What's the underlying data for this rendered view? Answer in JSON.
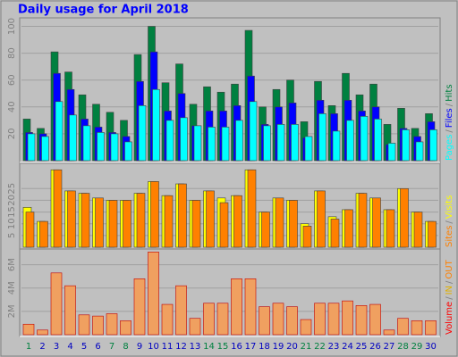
{
  "chart_data": {
    "type": "bar",
    "title": "Daily usage for April 2018",
    "separator": "/",
    "categories": [
      "1",
      "2",
      "3",
      "4",
      "5",
      "6",
      "7",
      "8",
      "9",
      "10",
      "11",
      "12",
      "13",
      "14",
      "15",
      "16",
      "17",
      "18",
      "19",
      "20",
      "21",
      "22",
      "23",
      "24",
      "25",
      "26",
      "27",
      "28",
      "29",
      "30"
    ],
    "label_colors": [
      "#008040",
      "#0000c0",
      "#0000c0",
      "#0000c0",
      "#0000c0",
      "#0000c0",
      "#008040",
      "#008040",
      "#0000c0",
      "#0000c0",
      "#0000c0",
      "#0000c0",
      "#0000c0",
      "#008040",
      "#008040",
      "#0000c0",
      "#0000c0",
      "#0000c0",
      "#0000c0",
      "#0000c0",
      "#008040",
      "#008040",
      "#0000c0",
      "#0000c0",
      "#0000c0",
      "#0000c0",
      "#0000c0",
      "#008040",
      "#008040",
      "#0000c0"
    ],
    "panels": [
      {
        "ylim": [
          0,
          105
        ],
        "yticks": [
          20,
          40,
          60,
          80,
          100
        ],
        "series": [
          {
            "name": "Hits",
            "color": "#008040",
            "values": [
              31,
              24,
              81,
              66,
              49,
              42,
              36,
              30,
              79,
              100,
              58,
              72,
              42,
              55,
              51,
              57,
              97,
              40,
              53,
              60,
              29,
              59,
              41,
              65,
              49,
              57,
              27,
              39,
              24,
              35
            ]
          },
          {
            "name": "Files",
            "color": "#0000ff",
            "values": [
              21,
              20,
              65,
              53,
              31,
              25,
              21,
              18,
              59,
              81,
              37,
              50,
              26,
              37,
              37,
              41,
              63,
              27,
              40,
              43,
              17,
              45,
              35,
              45,
              37,
              40,
              12,
              24,
              18,
              29
            ]
          },
          {
            "name": "Pages",
            "color": "#00ffff",
            "values": [
              20,
              18,
              44,
              34,
              26,
              21,
              20,
              14,
              41,
              53,
              30,
              32,
              26,
              25,
              25,
              30,
              44,
              26,
              27,
              27,
              18,
              35,
              22,
              30,
              33,
              31,
              13,
              23,
              14,
              23
            ]
          }
        ]
      },
      {
        "ylim": [
          0,
          35
        ],
        "yticks": [
          5,
          10,
          15,
          20,
          25
        ],
        "series": [
          {
            "name": "Visits",
            "color": "#ffff00",
            "values": [
              17,
              11,
              33,
              24,
              23,
              21,
              20,
              20,
              23,
              28,
              22,
              27,
              20,
              24,
              21,
              22,
              33,
              15,
              21,
              20,
              10,
              24,
              13,
              16,
              23,
              21,
              16,
              25,
              15,
              11
            ]
          },
          {
            "name": "Sites",
            "color": "#ff8000",
            "values": [
              15,
              11,
              33,
              24,
              23,
              21,
              20,
              20,
              23,
              28,
              22,
              27,
              20,
              24,
              19,
              22,
              33,
              15,
              21,
              20,
              9,
              24,
              12,
              16,
              23,
              21,
              16,
              25,
              15,
              11
            ]
          }
        ]
      },
      {
        "ylim": [
          0,
          7.2
        ],
        "yticks": [
          {
            "value": 2,
            "label": "2M"
          },
          {
            "value": 4,
            "label": "4M"
          },
          {
            "value": 6,
            "label": "6M"
          }
        ],
        "series": [
          {
            "name": "Volume",
            "color": "#ff0000",
            "fill": "#f0a060",
            "values": [
              0.9,
              0.4,
              5.3,
              4.2,
              1.7,
              1.6,
              1.8,
              1.2,
              4.8,
              7.1,
              2.6,
              4.2,
              1.4,
              2.7,
              2.7,
              4.8,
              4.8,
              2.4,
              2.7,
              2.4,
              1.3,
              2.7,
              2.7,
              2.9,
              2.5,
              2.6,
              0.4,
              1.4,
              1.2,
              1.2
            ]
          }
        ],
        "extra_legend": [
          {
            "name": "IN",
            "color": "#e0b000"
          },
          {
            "name": "OUT",
            "color": "#ff8000"
          }
        ]
      }
    ]
  }
}
